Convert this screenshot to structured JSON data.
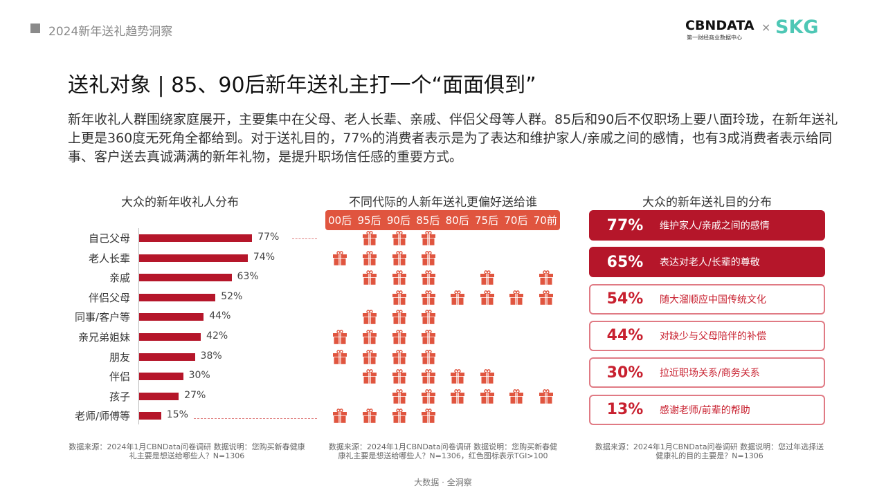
{
  "header": {
    "title": "2024新年送礼趋势洞察",
    "logo_text": "CBNDATA",
    "logo_sub": "第一财经商业数据中心",
    "times": "×",
    "partner": "SKG"
  },
  "title": "送礼对象 | 85、90后新年送礼主打一个“面面俱到”",
  "description": "新年收礼人群围绕家庭展开，主要集中在父母、老人长辈、亲戚、伴侣父母等人群。85后和90后不仅职场上要八面玲珑，在新年送礼上更是360度无死角全都给到。对于送礼目的，77%的消费者表示是为了表达和维护家人/亲戚之间的感情，也有3成消费者表示给同事、客户送去真诚满满的新年礼物，是提升职场信任感的重要方式。",
  "colors": {
    "bar": "#b5162a",
    "gift": "#e0553f",
    "accent": "#c8202f"
  },
  "chart_data": [
    {
      "type": "bar",
      "orientation": "horizontal",
      "title": "大众的新年收礼人分布",
      "categories": [
        "自己父母",
        "老人长辈",
        "亲戚",
        "伴侣父母",
        "同事/客户等",
        "亲兄弟姐妹",
        "朋友",
        "伴侣",
        "孩子",
        "老师/师傅等"
      ],
      "values": [
        77,
        74,
        63,
        52,
        44,
        42,
        38,
        30,
        27,
        15
      ],
      "value_labels": [
        "77%",
        "74%",
        "63%",
        "52%",
        "44%",
        "42%",
        "38%",
        "30%",
        "27%",
        "15%"
      ],
      "unit": "%"
    },
    {
      "type": "table",
      "title": "不同代际的人新年送礼更偏好送给谁",
      "columns": [
        "00后",
        "95后",
        "90后",
        "85后",
        "80后",
        "75后",
        "70后",
        "70前"
      ],
      "rows": [
        "自己父母",
        "老人长辈",
        "亲戚",
        "伴侣父母",
        "同事/客户等",
        "亲兄弟姐妹",
        "朋友",
        "伴侣",
        "孩子",
        "老师/师傅等"
      ],
      "icon": "gift-icon",
      "matrix": [
        [
          0,
          1,
          1,
          1,
          0,
          0,
          0,
          0
        ],
        [
          1,
          1,
          1,
          1,
          0,
          0,
          0,
          0
        ],
        [
          0,
          1,
          1,
          1,
          0,
          1,
          0,
          1
        ],
        [
          0,
          0,
          1,
          1,
          1,
          1,
          1,
          1
        ],
        [
          0,
          1,
          1,
          1,
          0,
          0,
          0,
          0
        ],
        [
          1,
          1,
          1,
          1,
          0,
          0,
          0,
          0
        ],
        [
          1,
          1,
          1,
          1,
          0,
          0,
          0,
          0
        ],
        [
          0,
          1,
          1,
          1,
          1,
          1,
          0,
          0
        ],
        [
          0,
          0,
          1,
          1,
          1,
          1,
          1,
          1
        ],
        [
          1,
          1,
          1,
          1,
          0,
          0,
          0,
          0
        ]
      ]
    },
    {
      "type": "bar",
      "title": "大众的新年送礼目的分布",
      "items": [
        {
          "pct": "77%",
          "label": "维护家人/亲戚之间的感情"
        },
        {
          "pct": "65%",
          "label": "表达对老人/长辈的尊敬"
        },
        {
          "pct": "54%",
          "label": "随大溜顺应中国传统文化"
        },
        {
          "pct": "44%",
          "label": "对缺少与父母陪伴的补偿"
        },
        {
          "pct": "30%",
          "label": "拉近职场关系/商务关系"
        },
        {
          "pct": "13%",
          "label": "感谢老师/前辈的帮助"
        }
      ],
      "values": [
        77,
        65,
        54,
        44,
        30,
        13
      ]
    }
  ],
  "notes": [
    "数据来源：2024年1月CBNData问卷调研  数据说明：您购买新春健康礼主要是想送给哪些人？N=1306",
    "数据来源：2024年1月CBNData问卷调研 数据说明：您购买新春健康礼主要是想送给哪些人？N=1306，红色图标表示TGI>100",
    "数据来源：2024年1月CBNData问卷调研 数据说明：您过年选择送健康礼的目的主要是？N=1306"
  ],
  "footer": "大数据 · 全洞察"
}
